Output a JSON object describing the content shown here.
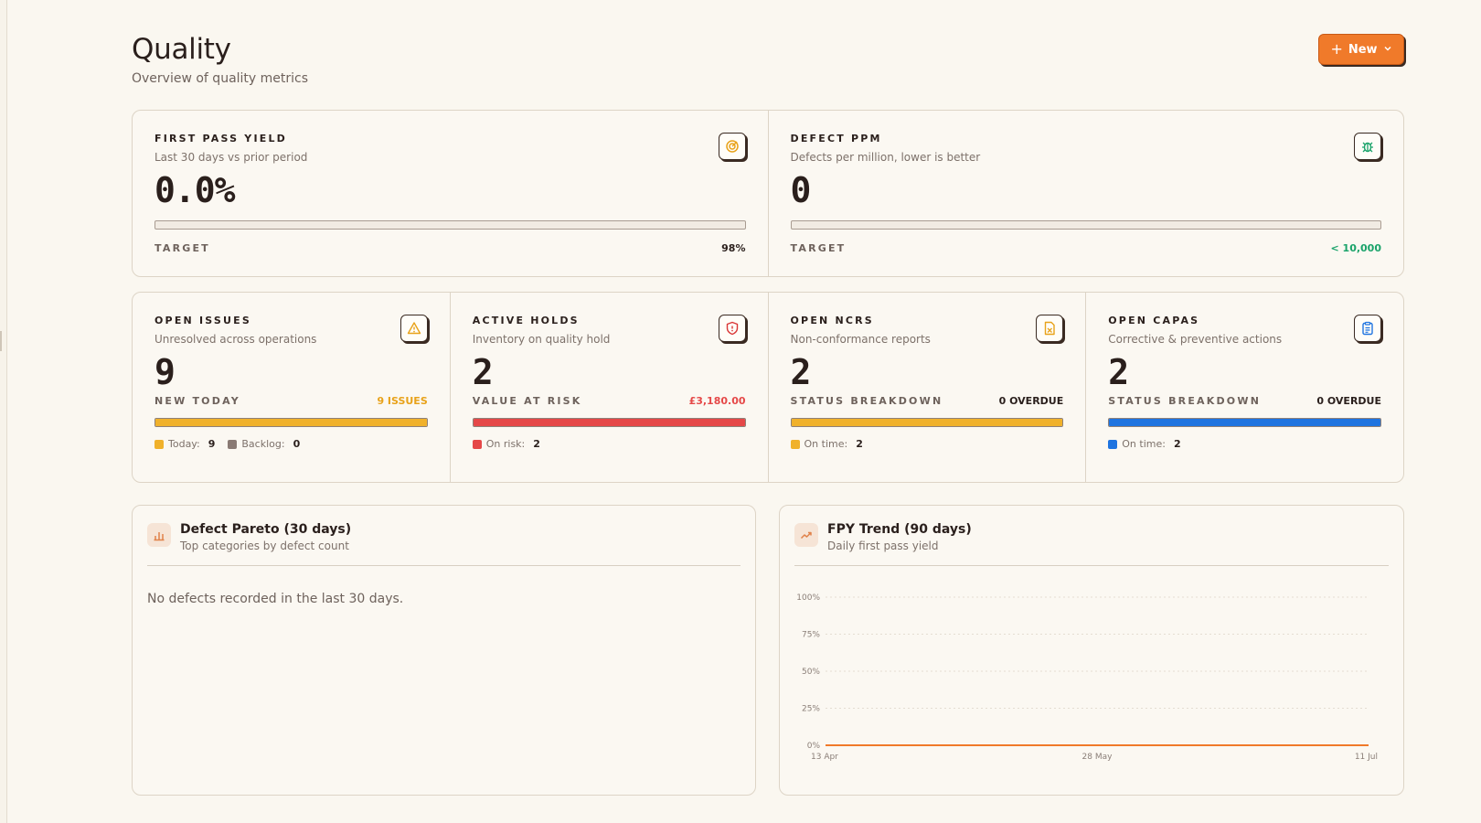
{
  "header": {
    "title": "Quality",
    "subtitle": "Overview of quality metrics",
    "new_button_label": "New"
  },
  "fpy": {
    "label": "FIRST PASS YIELD",
    "description": "Last 30 days vs prior period",
    "value": "0.0%",
    "progress_fraction": 0,
    "target_label": "TARGET",
    "target_value": "98%",
    "icon": "target-icon",
    "icon_color": "#e8a21a"
  },
  "ppm": {
    "label": "DEFECT PPM",
    "description": "Defects per million, lower is better",
    "value": "0",
    "progress_fraction": 0,
    "target_label": "TARGET",
    "target_value": "< 10,000",
    "icon": "bug-icon",
    "icon_color": "#1aa36a"
  },
  "open_issues": {
    "label": "OPEN ISSUES",
    "description": "Unresolved across operations",
    "value": "9",
    "meta_label": "NEW TODAY",
    "meta_value": "9 ISSUES",
    "bar_color": "#f0b12b",
    "bar_fraction": 1,
    "legend": [
      {
        "name": "Today:",
        "count": "9",
        "color": "#f0b12b"
      },
      {
        "name": "Backlog:",
        "count": "0",
        "color": "#8a7a74"
      }
    ],
    "icon": "alert-triangle-icon",
    "icon_color": "#e8a21a"
  },
  "active_holds": {
    "label": "ACTIVE HOLDS",
    "description": "Inventory on quality hold",
    "value": "2",
    "meta_label": "VALUE AT RISK",
    "meta_value": "£3,180.00",
    "bar_color": "#e54848",
    "bar_fraction": 1,
    "legend": [
      {
        "name": "On risk:",
        "count": "2",
        "color": "#e54848"
      }
    ],
    "icon": "shield-icon",
    "icon_color": "#d93636"
  },
  "open_ncrs": {
    "label": "OPEN NCRS",
    "description": "Non-conformance reports",
    "value": "2",
    "meta_label": "STATUS BREAKDOWN",
    "meta_value": "0 OVERDUE",
    "bar_color": "#f0b12b",
    "bar_fraction": 1,
    "legend": [
      {
        "name": "On time:",
        "count": "2",
        "color": "#f0b12b"
      }
    ],
    "icon": "file-x-icon",
    "icon_color": "#e8a21a"
  },
  "open_capas": {
    "label": "OPEN CAPAS",
    "description": "Corrective & preventive actions",
    "value": "2",
    "meta_label": "STATUS BREAKDOWN",
    "meta_value": "0 OVERDUE",
    "bar_color": "#1f74e0",
    "bar_fraction": 1,
    "legend": [
      {
        "name": "On time:",
        "count": "2",
        "color": "#1f74e0"
      }
    ],
    "icon": "clipboard-icon",
    "icon_color": "#1f74e0"
  },
  "pareto": {
    "title": "Defect Pareto (30 days)",
    "subtitle": "Top categories by defect count",
    "empty_message": "No defects recorded in the last 30 days.",
    "icon": "bar-chart-icon"
  },
  "trend": {
    "title": "FPY Trend (90 days)",
    "subtitle": "Daily first pass yield",
    "icon": "trending-up-icon"
  },
  "chart_data": {
    "type": "line",
    "title": "FPY Trend (90 days)",
    "xlabel": "",
    "ylabel": "",
    "x_ticks": [
      "13 Apr",
      "28 May",
      "11 Jul"
    ],
    "y_ticks": [
      "100%",
      "75%",
      "50%",
      "25%",
      "0%"
    ],
    "ylim": [
      0,
      100
    ],
    "grid": true,
    "series": [
      {
        "x": [
          "13 Apr",
          "11 Jul"
        ],
        "values": [
          0,
          0
        ],
        "color": "#f07a2a"
      }
    ]
  }
}
